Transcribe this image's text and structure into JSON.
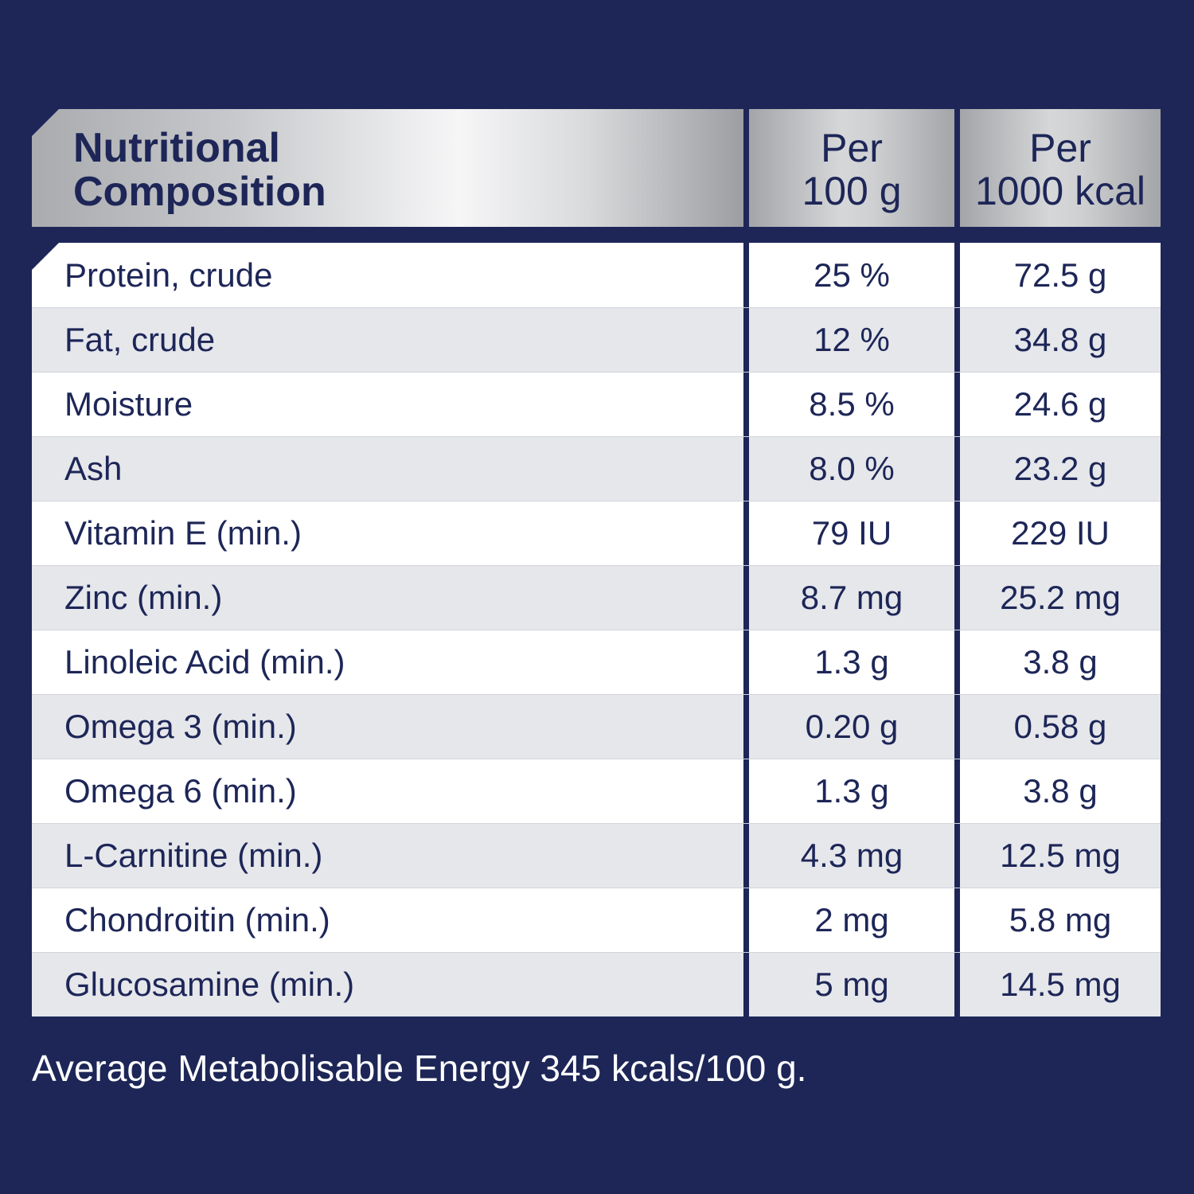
{
  "header": {
    "title_line1": "Nutritional",
    "title_line2": "Composition",
    "col1_line1": "Per",
    "col1_line2": "100 g",
    "col2_line1": "Per",
    "col2_line2": "1000 kcal"
  },
  "rows": [
    {
      "name": "Protein, crude",
      "per100g": "25 %",
      "per1000kcal": "72.5 g"
    },
    {
      "name": "Fat, crude",
      "per100g": "12 %",
      "per1000kcal": "34.8 g"
    },
    {
      "name": "Moisture",
      "per100g": "8.5 %",
      "per1000kcal": "24.6 g"
    },
    {
      "name": "Ash",
      "per100g": "8.0 %",
      "per1000kcal": "23.2 g"
    },
    {
      "name": "Vitamin E (min.)",
      "per100g": "79 IU",
      "per1000kcal": "229 IU"
    },
    {
      "name": "Zinc (min.)",
      "per100g": "8.7 mg",
      "per1000kcal": "25.2 mg"
    },
    {
      "name": "Linoleic Acid (min.)",
      "per100g": "1.3 g",
      "per1000kcal": "3.8 g"
    },
    {
      "name": "Omega 3 (min.)",
      "per100g": "0.20 g",
      "per1000kcal": "0.58 g"
    },
    {
      "name": "Omega 6 (min.)",
      "per100g": "1.3 g",
      "per1000kcal": "3.8 g"
    },
    {
      "name": "L-Carnitine (min.)",
      "per100g": "4.3 mg",
      "per1000kcal": "12.5 mg"
    },
    {
      "name": "Chondroitin (min.)",
      "per100g": "2 mg",
      "per1000kcal": "5.8 mg"
    },
    {
      "name": "Glucosamine (min.)",
      "per100g": "5 mg",
      "per1000kcal": "14.5 mg"
    }
  ],
  "footer": "Average Metabolisable Energy 345 kcals/100 g.",
  "colors": {
    "background": "#1d2657",
    "text_dark": "#1d2657",
    "row_odd": "#ffffff",
    "row_even": "#e6e7eb"
  }
}
